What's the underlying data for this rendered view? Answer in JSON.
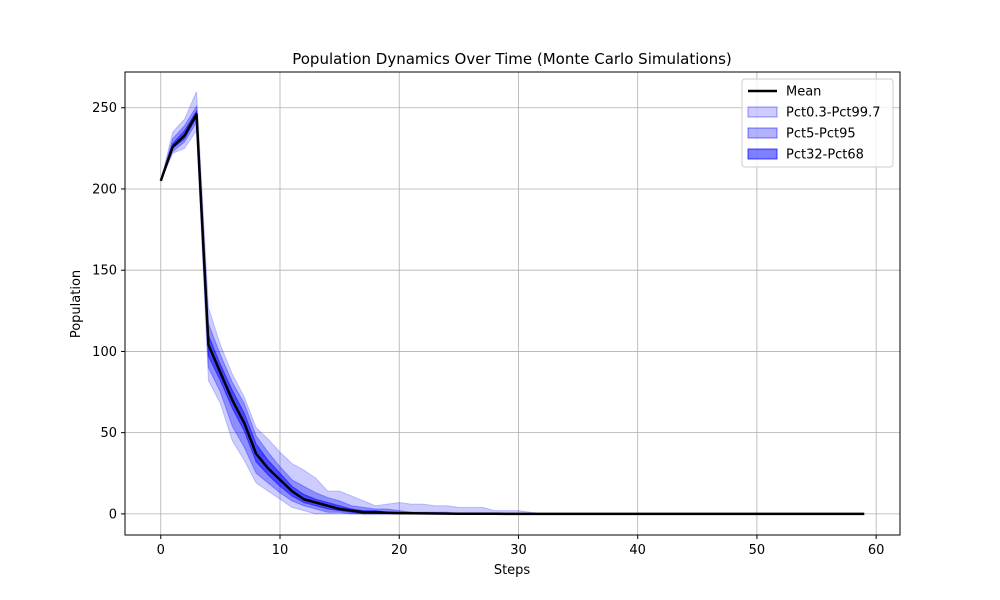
{
  "chart_data": {
    "type": "line",
    "title": "Population Dynamics Over Time (Monte Carlo Simulations)",
    "xlabel": "Steps",
    "ylabel": "Population",
    "xlim": [
      -3,
      62
    ],
    "ylim": [
      -13,
      272
    ],
    "xticks": [
      0,
      10,
      20,
      30,
      40,
      50,
      60
    ],
    "yticks": [
      0,
      50,
      100,
      150,
      200,
      250
    ],
    "grid": true,
    "legend_position": "top-right",
    "colors": {
      "mean": "#000000",
      "band": "#0000ff"
    },
    "x": [
      0,
      1,
      2,
      3,
      4,
      5,
      6,
      7,
      8,
      9,
      10,
      11,
      12,
      13,
      14,
      15,
      16,
      17,
      18,
      19,
      20,
      21,
      22,
      23,
      24,
      25,
      26,
      27,
      28,
      29,
      30,
      31,
      32,
      33,
      34,
      35,
      36,
      37,
      38,
      39,
      40,
      41,
      42,
      43,
      44,
      45,
      46,
      47,
      48,
      49,
      50,
      51,
      52,
      53,
      54,
      55,
      56,
      57,
      58,
      59
    ],
    "series": [
      {
        "name": "Mean",
        "kind": "line",
        "values": [
          205,
          226,
          233,
          246,
          104,
          87,
          70,
          56,
          37,
          28,
          21,
          14,
          9,
          7,
          5,
          3,
          2,
          1,
          1,
          0.7,
          0.5,
          0.4,
          0.3,
          0.2,
          0.15,
          0.1,
          0.1,
          0.05,
          0.05,
          0,
          0,
          0,
          0,
          0,
          0,
          0,
          0,
          0,
          0,
          0,
          0,
          0,
          0,
          0,
          0,
          0,
          0,
          0,
          0,
          0,
          0,
          0,
          0,
          0,
          0,
          0,
          0,
          0,
          0,
          0
        ]
      },
      {
        "name": "Pct0.3-Pct99.7",
        "kind": "band",
        "opacity": 0.2,
        "lower": [
          205,
          222,
          225,
          236,
          82,
          68,
          45,
          33,
          19,
          14,
          9,
          4,
          2,
          0,
          0,
          0,
          0,
          0,
          0,
          0,
          0,
          0,
          0,
          0,
          0,
          0,
          0,
          0,
          0,
          0,
          0,
          0,
          0,
          0,
          0,
          0,
          0,
          0,
          0,
          0,
          0,
          0,
          0,
          0,
          0,
          0,
          0,
          0,
          0,
          0,
          0,
          0,
          0,
          0,
          0,
          0,
          0,
          0,
          0,
          0
        ],
        "upper": [
          205,
          235,
          243,
          260,
          127,
          104,
          86,
          72,
          53,
          46,
          38,
          31,
          27,
          22,
          14,
          14,
          11,
          8,
          5,
          6,
          7,
          6,
          6,
          5,
          5,
          4,
          4,
          4,
          2,
          2,
          2,
          1,
          0,
          0,
          0,
          0,
          0,
          0,
          0,
          0,
          0,
          0,
          0,
          0,
          0,
          0,
          0,
          0,
          0,
          0,
          0,
          0,
          0,
          0,
          0,
          0,
          0,
          0,
          0,
          0
        ]
      },
      {
        "name": "Pct5-Pct95",
        "kind": "band",
        "opacity": 0.3,
        "lower": [
          205,
          223,
          229,
          241,
          90,
          75,
          54,
          41,
          25,
          19,
          13,
          8,
          5,
          3,
          1,
          1,
          0,
          0,
          0,
          0,
          0,
          0,
          0,
          0,
          0,
          0,
          0,
          0,
          0,
          0,
          0,
          0,
          0,
          0,
          0,
          0,
          0,
          0,
          0,
          0,
          0,
          0,
          0,
          0,
          0,
          0,
          0,
          0,
          0,
          0,
          0,
          0,
          0,
          0,
          0,
          0,
          0,
          0,
          0,
          0
        ],
        "upper": [
          205,
          231,
          239,
          251,
          117,
          98,
          81,
          68,
          48,
          38,
          29,
          21,
          17,
          13,
          10,
          8,
          5,
          4,
          3,
          3,
          2,
          1,
          1,
          1,
          1,
          0,
          0,
          0,
          0,
          0,
          0,
          0,
          0,
          0,
          0,
          0,
          0,
          0,
          0,
          0,
          0,
          0,
          0,
          0,
          0,
          0,
          0,
          0,
          0,
          0,
          0,
          0,
          0,
          0,
          0,
          0,
          0,
          0,
          0,
          0
        ]
      },
      {
        "name": "Pct32-Pct68",
        "kind": "band",
        "opacity": 0.5,
        "lower": [
          205,
          225,
          231,
          244,
          97,
          82,
          65,
          51,
          32,
          24,
          17,
          11,
          7,
          5,
          3,
          2,
          1,
          0,
          0,
          0,
          0,
          0,
          0,
          0,
          0,
          0,
          0,
          0,
          0,
          0,
          0,
          0,
          0,
          0,
          0,
          0,
          0,
          0,
          0,
          0,
          0,
          0,
          0,
          0,
          0,
          0,
          0,
          0,
          0,
          0,
          0,
          0,
          0,
          0,
          0,
          0,
          0,
          0,
          0,
          0
        ],
        "upper": [
          205,
          228,
          236,
          248,
          110,
          92,
          76,
          62,
          43,
          33,
          25,
          17,
          12,
          9,
          7,
          5,
          3,
          2,
          2,
          1,
          1,
          1,
          0,
          0,
          0,
          0,
          0,
          0,
          0,
          0,
          0,
          0,
          0,
          0,
          0,
          0,
          0,
          0,
          0,
          0,
          0,
          0,
          0,
          0,
          0,
          0,
          0,
          0,
          0,
          0,
          0,
          0,
          0,
          0,
          0,
          0,
          0,
          0,
          0,
          0
        ]
      }
    ]
  }
}
